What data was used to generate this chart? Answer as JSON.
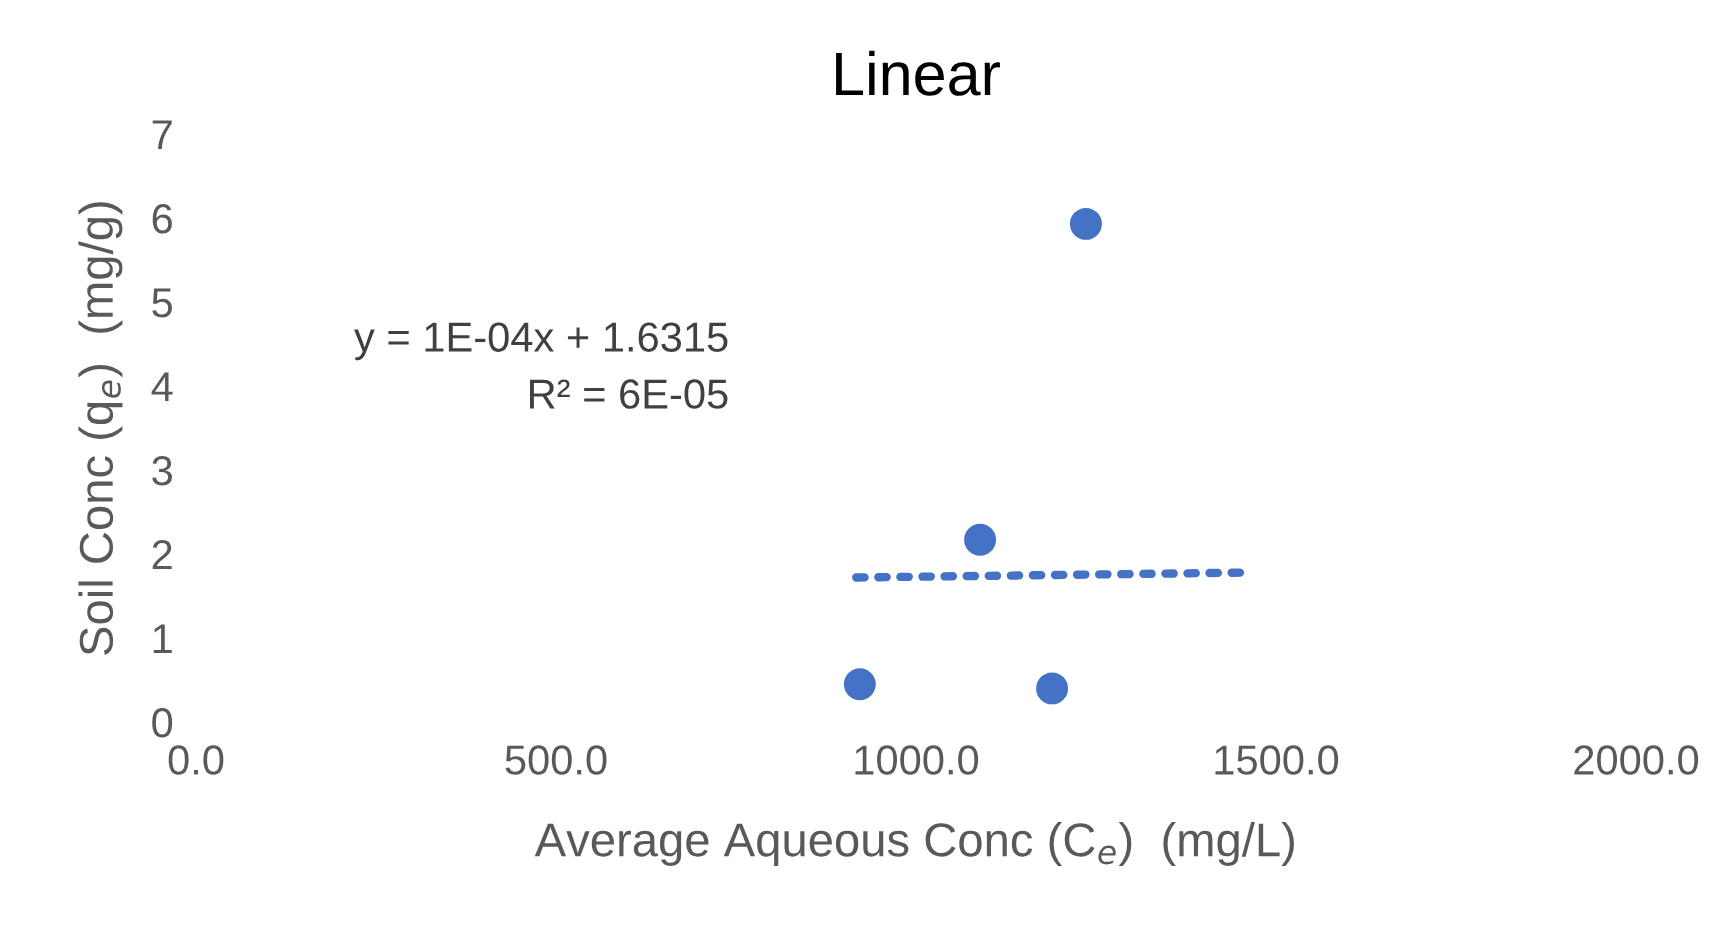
{
  "chart_data": {
    "type": "scatter",
    "title": "Linear",
    "xlabel": "Average Aqueous Conc (C$_{e}$)  (mg/L)",
    "ylabel": "Soil Conc (q$_{e}$)  (mg/g)",
    "x": [
      922,
      1089,
      1189,
      1236
    ],
    "series": [
      {
        "color": "#4472c4",
        "values": [
          0.45,
          2.17,
          0.4,
          5.93
        ],
        "marker": "circle"
      },
      {
        "type": "line",
        "color": "#4472c4",
        "x": [
          917,
          1467
        ],
        "values": [
          1.72,
          1.78
        ],
        "line_style": "dotted",
        "marker": "none"
      }
    ],
    "annotations": [
      "y = 1E-04x + 1.6315\nR² = 6E-05"
    ],
    "xlim": [
      0,
      2000
    ],
    "xticks": [
      {
        "value": 0,
        "label": "0.0"
      },
      {
        "value": 500,
        "label": "500.0"
      },
      {
        "value": 1000,
        "label": "1000.0"
      },
      {
        "value": 1500,
        "label": "1500.0"
      },
      {
        "value": 2000,
        "label": "2000.0"
      }
    ],
    "ylim": [
      0,
      7
    ],
    "yticks": [
      0,
      1,
      2,
      3,
      4,
      5,
      6,
      7
    ],
    "grid": false,
    "legend": false
  }
}
